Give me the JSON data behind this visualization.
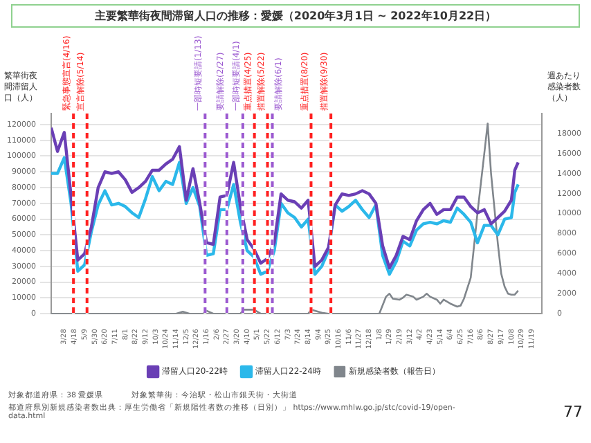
{
  "chart_data": {
    "type": "line",
    "title": "主要繁華街夜間滞留人口の推移：愛媛（2020年3月1日 ~ 2022年10月22日）",
    "ylabel": "繁華街夜間滞留人口（人）",
    "y2label": "週あたり感染者数（人）",
    "x": [
      "2020-03-01",
      "2020-03-14",
      "2020-03-28",
      "2020-04-11",
      "2020-04-25",
      "2020-05-09",
      "2020-05-23",
      "2020-06-06",
      "2020-06-20",
      "2020-07-04",
      "2020-07-18",
      "2020-08-01",
      "2020-08-15",
      "2020-08-29",
      "2020-09-12",
      "2020-09-26",
      "2020-10-10",
      "2020-10-24",
      "2020-11-07",
      "2020-11-21",
      "2020-12-05",
      "2020-12-19",
      "2021-01-02",
      "2021-01-16",
      "2021-01-30",
      "2021-02-13",
      "2021-02-27",
      "2021-03-13",
      "2021-03-27",
      "2021-04-10",
      "2021-04-24",
      "2021-05-08",
      "2021-05-22",
      "2021-06-05",
      "2021-06-19",
      "2021-07-03",
      "2021-07-17",
      "2021-07-31",
      "2021-08-14",
      "2021-08-28",
      "2021-09-11",
      "2021-09-25",
      "2021-10-09",
      "2021-10-23",
      "2021-11-06",
      "2021-11-20",
      "2021-12-04",
      "2021-12-18",
      "2022-01-01",
      "2022-01-15",
      "2022-01-29",
      "2022-02-12",
      "2022-02-26",
      "2022-03-12",
      "2022-03-26",
      "2022-04-09",
      "2022-04-23",
      "2022-05-07",
      "2022-05-21",
      "2022-06-04",
      "2022-06-18",
      "2022-07-02",
      "2022-07-16",
      "2022-07-30",
      "2022-08-13",
      "2022-08-27",
      "2022-09-10",
      "2022-09-24",
      "2022-10-08",
      "2022-10-15",
      "2022-10-22"
    ],
    "series": [
      {
        "name": "滞留人口20-22時",
        "color": "#6a3fb5",
        "values": [
          118000,
          103000,
          115000,
          75000,
          34000,
          38000,
          55000,
          80000,
          90000,
          89000,
          90000,
          85000,
          77000,
          80000,
          84000,
          91000,
          91000,
          95000,
          98000,
          106000,
          72000,
          92000,
          70000,
          45000,
          44000,
          74000,
          75000,
          96000,
          68000,
          47000,
          41000,
          32000,
          35000,
          45000,
          76000,
          72000,
          71000,
          67000,
          72000,
          30000,
          34000,
          42000,
          69000,
          76000,
          75000,
          76000,
          78000,
          76000,
          70000,
          43000,
          29000,
          37000,
          49000,
          47000,
          59000,
          66000,
          70000,
          63000,
          66000,
          66000,
          74000,
          74000,
          68000,
          64000,
          66000,
          57000,
          61000,
          65000,
          72000,
          91000,
          96000
        ]
      },
      {
        "name": "滞留人口22-24時",
        "color": "#2bb8ea",
        "values": [
          89000,
          89000,
          99000,
          70000,
          27000,
          31000,
          52000,
          69000,
          78000,
          69000,
          70000,
          68000,
          64000,
          61000,
          73000,
          87000,
          78000,
          84000,
          82000,
          96000,
          70000,
          80000,
          68000,
          37000,
          38000,
          66000,
          66000,
          82000,
          58000,
          40000,
          36000,
          25000,
          27000,
          40000,
          70000,
          64000,
          61000,
          55000,
          60000,
          25000,
          30000,
          40000,
          69000,
          65000,
          68000,
          72000,
          66000,
          61000,
          69000,
          37000,
          25000,
          33000,
          46000,
          43000,
          53000,
          57000,
          58000,
          57000,
          59000,
          58000,
          67000,
          63000,
          58000,
          45000,
          56000,
          56000,
          50000,
          60000,
          61000,
          77000,
          82000
        ]
      },
      {
        "name": "新規感染者数（報告日）",
        "color": "#80868c",
        "axis": "y2",
        "x": [
          "2020-03-01",
          "2020-11-14",
          "2020-11-28",
          "2020-12-12",
          "2021-01-09",
          "2021-01-16",
          "2021-01-30",
          "2021-03-27",
          "2021-04-03",
          "2021-04-24",
          "2021-05-08",
          "2021-08-14",
          "2021-08-21",
          "2021-09-11",
          "2021-09-25",
          "2022-01-08",
          "2022-01-22",
          "2022-01-29",
          "2022-02-05",
          "2022-02-19",
          "2022-02-26",
          "2022-03-05",
          "2022-03-19",
          "2022-03-26",
          "2022-04-09",
          "2022-04-16",
          "2022-04-23",
          "2022-05-07",
          "2022-05-14",
          "2022-05-21",
          "2022-06-04",
          "2022-06-18",
          "2022-06-25",
          "2022-07-02",
          "2022-07-16",
          "2022-07-30",
          "2022-08-13",
          "2022-08-20",
          "2022-08-27",
          "2022-09-10",
          "2022-09-17",
          "2022-09-24",
          "2022-10-01",
          "2022-10-08",
          "2022-10-15",
          "2022-10-22"
        ],
        "values": [
          0,
          0,
          200,
          0,
          0,
          300,
          0,
          0,
          400,
          400,
          0,
          0,
          400,
          100,
          0,
          0,
          1700,
          2000,
          1500,
          1400,
          1600,
          1900,
          1700,
          1400,
          1700,
          2000,
          1700,
          1400,
          1000,
          1400,
          1000,
          700,
          800,
          1500,
          3600,
          10100,
          16000,
          19000,
          14000,
          7000,
          4000,
          2700,
          2000,
          1900,
          1900,
          2300
        ]
      }
    ],
    "xlim": [
      "2020-03-01",
      "2022-12-10"
    ],
    "xticks": [
      {
        "value": "2020-03-28",
        "label": "3/28"
      },
      {
        "value": "2020-04-18",
        "label": "4/18"
      },
      {
        "value": "2020-05-09",
        "label": "5/9"
      },
      {
        "value": "2020-05-30",
        "label": "5/30"
      },
      {
        "value": "2020-06-20",
        "label": "6/20"
      },
      {
        "value": "2020-07-11",
        "label": "7/11"
      },
      {
        "value": "2020-08-01",
        "label": "8/1"
      },
      {
        "value": "2020-08-22",
        "label": "8/22"
      },
      {
        "value": "2020-09-12",
        "label": "9/12"
      },
      {
        "value": "2020-10-03",
        "label": "10/3"
      },
      {
        "value": "2020-10-24",
        "label": "10/24"
      },
      {
        "value": "2020-11-14",
        "label": "11/14"
      },
      {
        "value": "2020-12-05",
        "label": "12/5"
      },
      {
        "value": "2020-12-26",
        "label": "12/26"
      },
      {
        "value": "2021-01-16",
        "label": "1/16"
      },
      {
        "value": "2021-02-06",
        "label": "2/6"
      },
      {
        "value": "2021-02-27",
        "label": "2/27"
      },
      {
        "value": "2021-03-20",
        "label": "3/20"
      },
      {
        "value": "2021-04-10",
        "label": "4/10"
      },
      {
        "value": "2021-05-01",
        "label": "5/1"
      },
      {
        "value": "2021-05-22",
        "label": "5/22"
      },
      {
        "value": "2021-06-12",
        "label": "6/12"
      },
      {
        "value": "2021-07-03",
        "label": "7/3"
      },
      {
        "value": "2021-07-24",
        "label": "7/24"
      },
      {
        "value": "2021-08-14",
        "label": "8/14"
      },
      {
        "value": "2021-09-04",
        "label": "9/4"
      },
      {
        "value": "2021-09-25",
        "label": "9/25"
      },
      {
        "value": "2021-10-16",
        "label": "10/16"
      },
      {
        "value": "2021-11-06",
        "label": "11/6"
      },
      {
        "value": "2021-11-27",
        "label": "11/27"
      },
      {
        "value": "2021-12-18",
        "label": "12/18"
      },
      {
        "value": "2022-01-08",
        "label": "1/8"
      },
      {
        "value": "2022-01-29",
        "label": "1/29"
      },
      {
        "value": "2022-02-19",
        "label": "2/19"
      },
      {
        "value": "2022-03-12",
        "label": "3/12"
      },
      {
        "value": "2022-04-02",
        "label": "4/2"
      },
      {
        "value": "2022-04-23",
        "label": "4/23"
      },
      {
        "value": "2022-05-14",
        "label": "5/14"
      },
      {
        "value": "2022-06-04",
        "label": "6/4"
      },
      {
        "value": "2022-06-25",
        "label": "6/25"
      },
      {
        "value": "2022-07-16",
        "label": "7/16"
      },
      {
        "value": "2022-08-06",
        "label": "8/6"
      },
      {
        "value": "2022-08-27",
        "label": "8/27"
      },
      {
        "value": "2022-09-17",
        "label": "9/17"
      },
      {
        "value": "2022-10-08",
        "label": "10/8"
      },
      {
        "value": "2022-10-29",
        "label": "10/29"
      },
      {
        "value": "2022-11-19",
        "label": "11/19"
      }
    ],
    "ylim": [
      0,
      127000
    ],
    "yticks": [
      0,
      10000,
      20000,
      30000,
      40000,
      50000,
      60000,
      70000,
      80000,
      90000,
      100000,
      110000,
      120000
    ],
    "y2lim": [
      0,
      20000
    ],
    "y2ticks": [
      0,
      2000,
      4000,
      6000,
      8000,
      10000,
      12000,
      14000,
      16000,
      18000
    ],
    "ref_lines": [
      {
        "axis": "x",
        "value": "2020-04-16",
        "label": "緊急事態宣言(4/16)",
        "color": "#ff2020",
        "line_style": "dashed"
      },
      {
        "axis": "x",
        "value": "2020-05-14",
        "label": "宣言解除(5/14)",
        "color": "#ff2020",
        "line_style": "dashed"
      },
      {
        "axis": "x",
        "value": "2021-01-13",
        "label": "一部時短要請(1/13)",
        "color": "#9b59d0",
        "line_style": "dashed"
      },
      {
        "axis": "x",
        "value": "2021-02-27",
        "label": "要請解除(2/27)",
        "color": "#9b59d0",
        "line_style": "dashed"
      },
      {
        "axis": "x",
        "value": "2021-04-01",
        "label": "一部時短要請(4/1)",
        "color": "#9b59d0",
        "line_style": "dashed"
      },
      {
        "axis": "x",
        "value": "2021-04-25",
        "label": "重点措置(4/25)",
        "color": "#ff2020",
        "line_style": "dashed"
      },
      {
        "axis": "x",
        "value": "2021-05-22",
        "label": "措置解除(5/22)",
        "color": "#ff2020",
        "line_style": "dashed"
      },
      {
        "axis": "x",
        "value": "2021-06-01",
        "label": "要請解除(6/1)",
        "color": "#9b59d0",
        "line_style": "dashed"
      },
      {
        "axis": "x",
        "value": "2021-08-20",
        "label": "重点措置(8/20)",
        "color": "#ff2020",
        "line_style": "dashed"
      },
      {
        "axis": "x",
        "value": "2021-09-30",
        "label": "措置解除(9/30)",
        "color": "#ff2020",
        "line_style": "dashed"
      }
    ],
    "annotations": [
      "対象都道府県：38 愛媛県",
      "対象繁華街：今治駅・松山市銀天街・大街道",
      "都道府県別新規感染者数出典：厚生労働省「新規陽性者数の推移（日別）」 https://www.mhlw.go.jp/stc/covid-19/open-data.html",
      "77"
    ],
    "grid": "y",
    "legend": "bottom",
    "marker": "none",
    "line_style": "solid"
  }
}
